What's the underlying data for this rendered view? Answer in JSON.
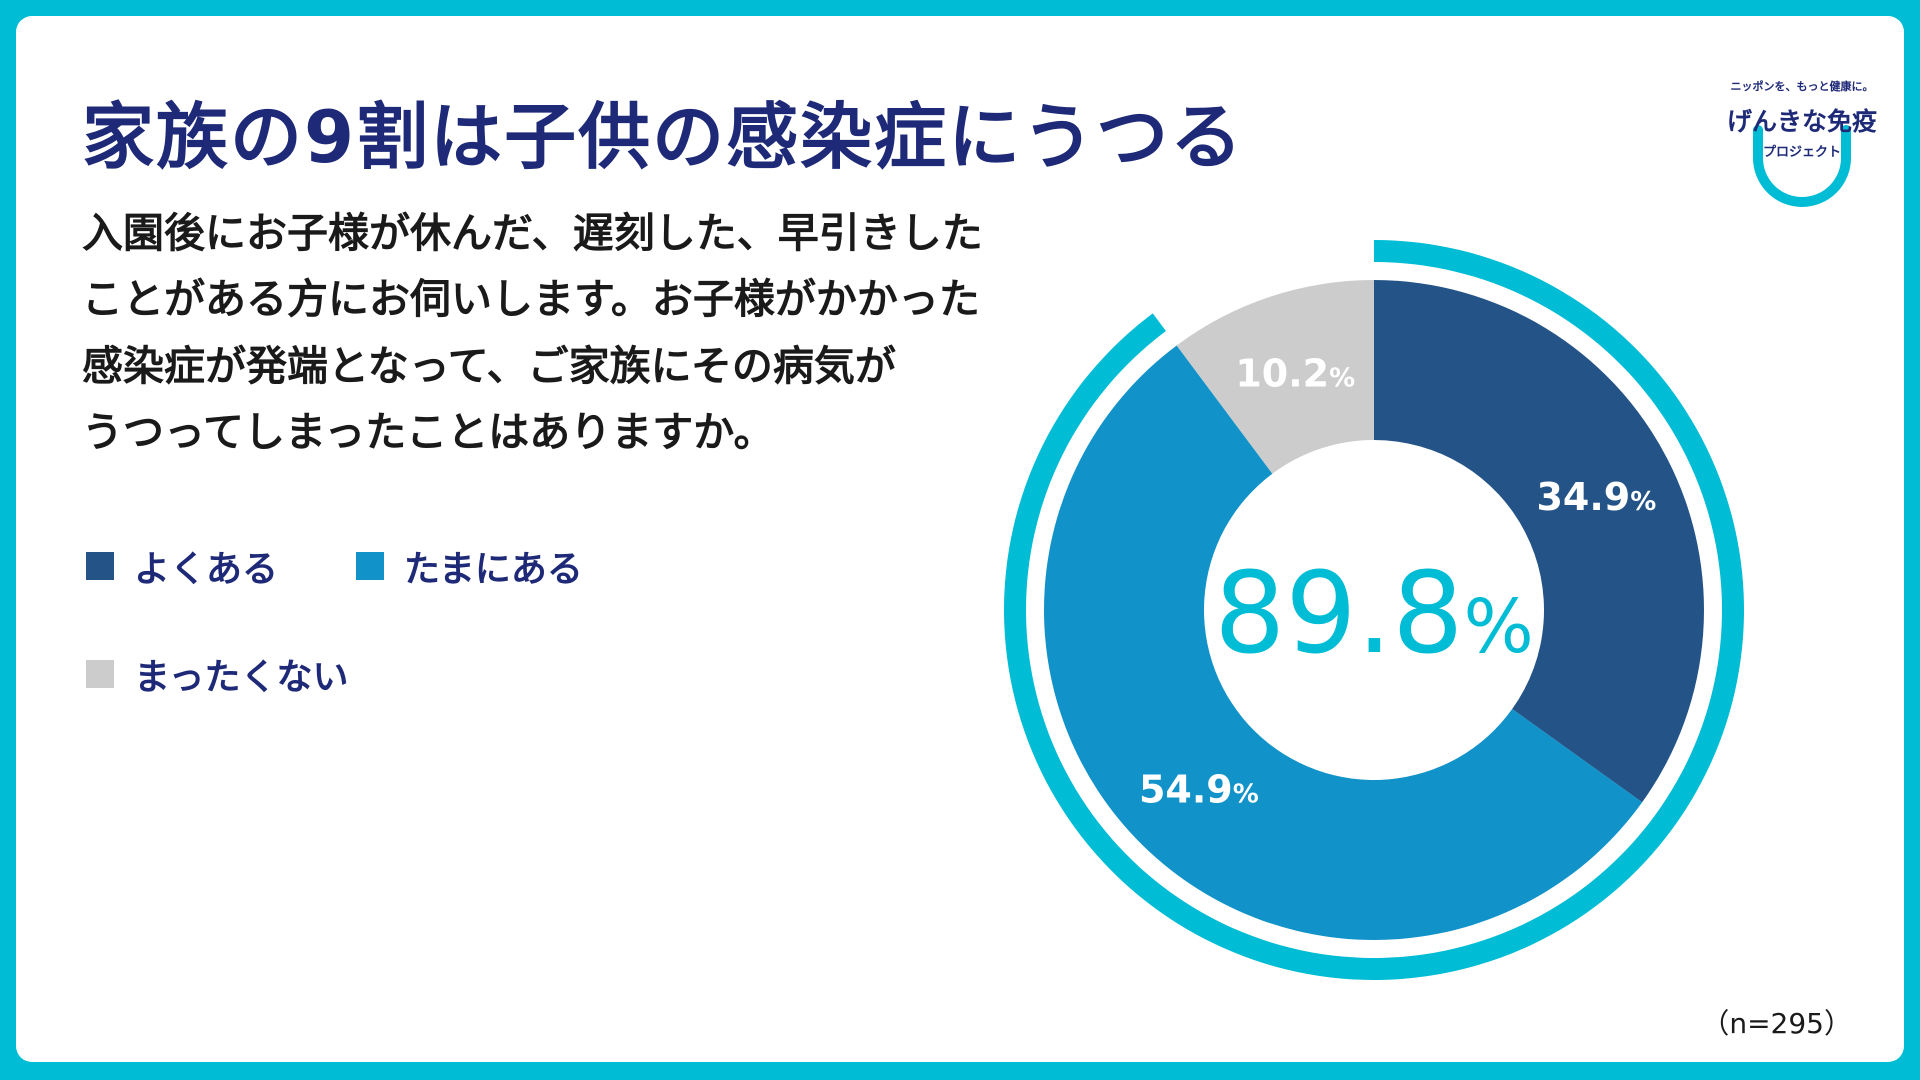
{
  "title": "家族の9割は子供の感染症にうつる",
  "question_lines": [
    "入園後にお子様が休んだ、遅刻した、早引きした",
    "ことがある方にお伺いします。お子様がかかった",
    "感染症が発端となって、ご家族にその病気が",
    "うつってしまったことはありますか。"
  ],
  "logo": {
    "tagline": "ニッポンを、もっと健康に。",
    "name": "げんきな免疫",
    "sub": "プロジェクト"
  },
  "sample_size": "（n=295）",
  "chart_data": {
    "type": "pie",
    "subtype": "donut",
    "categories": [
      "よくある",
      "たまにある",
      "まったくない"
    ],
    "values": [
      34.9,
      54.9,
      10.2
    ],
    "value_labels": [
      "34.9",
      "54.9",
      "10.2"
    ],
    "unit": "%",
    "colors": [
      "#235387",
      "#1192c8",
      "#cccccc"
    ],
    "center_value": "89.8",
    "center_unit": "%",
    "highlight_color": "#00bcd4",
    "legend_position": "left",
    "start_angle": "12 o'clock, clockwise"
  }
}
